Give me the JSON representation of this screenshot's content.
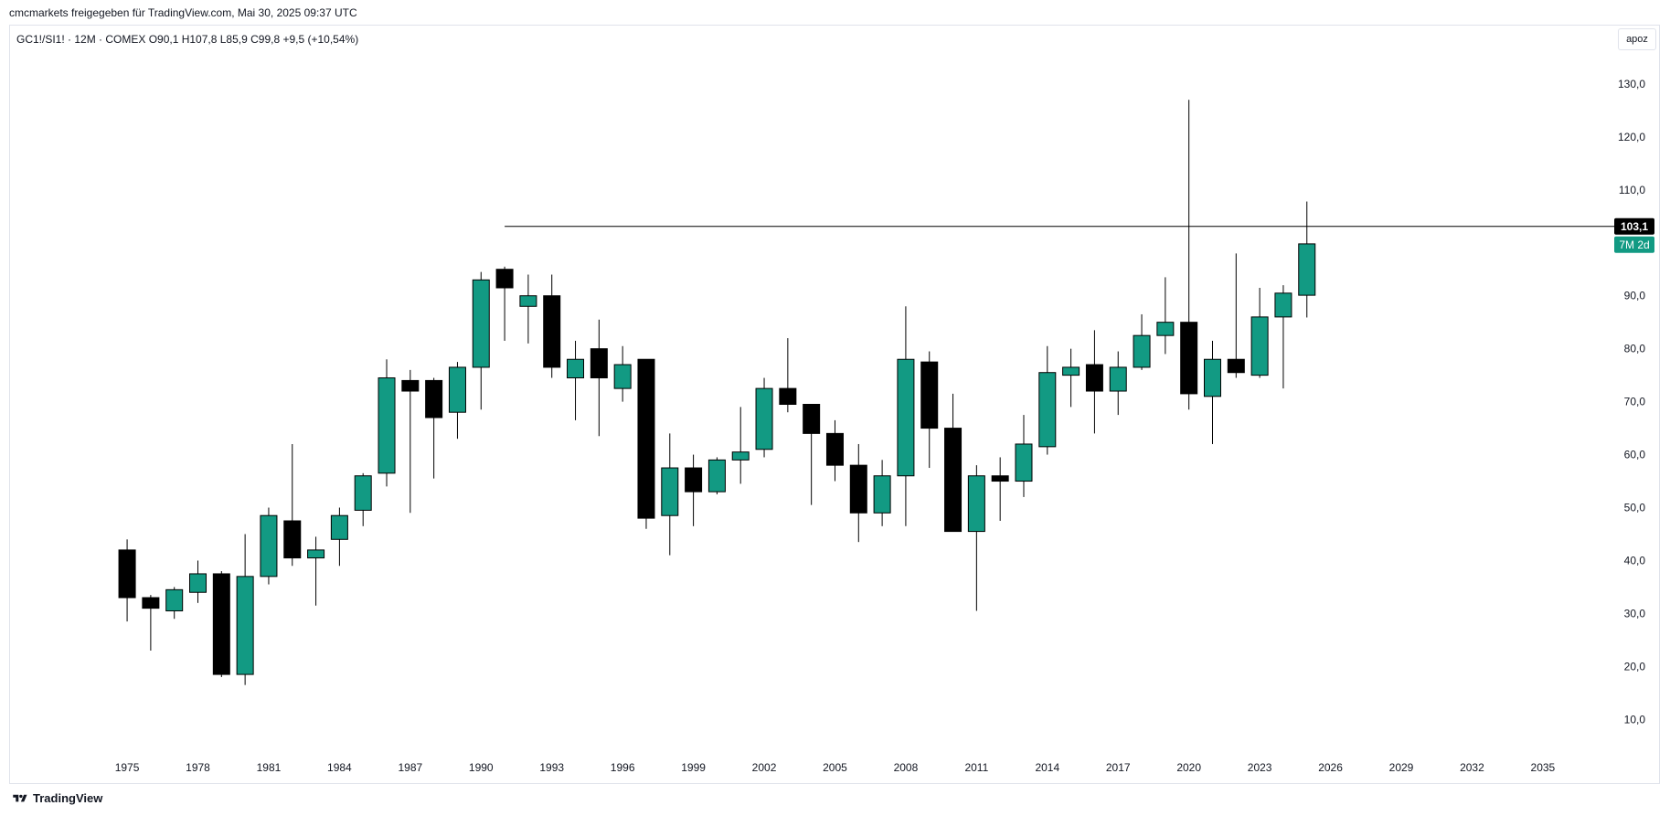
{
  "header": {
    "text": "cmcmarkets freigegeben für TradingView.com, Mai 30, 2025 09:37 UTC"
  },
  "legend": {
    "text": "GC1!/SI1! · 12M · COMEX  O90,1  H107,8  L85,9  C99,8  +9,5 (+10,54%)"
  },
  "apoz_label": "apoz",
  "footer": {
    "logo_text": "TradingView"
  },
  "colors": {
    "up": "#129a83",
    "down": "#000000",
    "line": "#000000"
  },
  "chart_data": {
    "type": "candlestick",
    "title": "GC1!/SI1!",
    "ylim": [
      3.5,
      135.5
    ],
    "y_ticks": [
      10,
      20,
      30,
      40,
      50,
      60,
      70,
      80,
      90,
      100,
      110,
      120,
      130
    ],
    "y_tick_labels": [
      "10,0",
      "20,0",
      "30,0",
      "40,0",
      "50,0",
      "60,0",
      "70,0",
      "80,0",
      "90,0",
      "100,0",
      "110,0",
      "120,0",
      "130,0"
    ],
    "hide_tick_values": [
      100
    ],
    "x_ticks": [
      1975,
      1978,
      1981,
      1984,
      1987,
      1990,
      1993,
      1996,
      1999,
      2002,
      2005,
      2008,
      2011,
      2014,
      2017,
      2020,
      2023,
      2026,
      2029,
      2032,
      2035
    ],
    "xlim": [
      1970.0,
      2037.6
    ],
    "horizontal_line": {
      "value": 103.1,
      "from_year": 1991,
      "label": "103,1"
    },
    "countdown_label": "7M 2d",
    "candles": [
      {
        "year": 1975,
        "o": 42,
        "h": 44,
        "l": 28.5,
        "c": 33
      },
      {
        "year": 1976,
        "o": 33,
        "h": 33.5,
        "l": 23,
        "c": 31
      },
      {
        "year": 1977,
        "o": 30.5,
        "h": 35,
        "l": 29,
        "c": 34.5
      },
      {
        "year": 1978,
        "o": 34,
        "h": 40,
        "l": 32,
        "c": 37.5
      },
      {
        "year": 1979,
        "o": 37.5,
        "h": 38,
        "l": 18,
        "c": 18.5
      },
      {
        "year": 1980,
        "o": 18.5,
        "h": 45,
        "l": 16.5,
        "c": 37
      },
      {
        "year": 1981,
        "o": 37,
        "h": 50,
        "l": 35.5,
        "c": 48.5
      },
      {
        "year": 1982,
        "o": 47.5,
        "h": 62,
        "l": 39,
        "c": 40.5
      },
      {
        "year": 1983,
        "o": 40.5,
        "h": 44.5,
        "l": 31.5,
        "c": 42
      },
      {
        "year": 1984,
        "o": 44,
        "h": 50,
        "l": 39,
        "c": 48.5
      },
      {
        "year": 1985,
        "o": 49.5,
        "h": 56.5,
        "l": 46.5,
        "c": 56
      },
      {
        "year": 1986,
        "o": 56.5,
        "h": 78,
        "l": 54,
        "c": 74.5
      },
      {
        "year": 1987,
        "o": 74,
        "h": 76,
        "l": 49,
        "c": 72
      },
      {
        "year": 1988,
        "o": 74,
        "h": 74.5,
        "l": 55.5,
        "c": 67
      },
      {
        "year": 1989,
        "o": 68,
        "h": 77.5,
        "l": 63,
        "c": 76.5
      },
      {
        "year": 1990,
        "o": 76.5,
        "h": 94.5,
        "l": 68.5,
        "c": 93
      },
      {
        "year": 1991,
        "o": 95,
        "h": 95.5,
        "l": 81.5,
        "c": 91.5
      },
      {
        "year": 1992,
        "o": 88,
        "h": 94,
        "l": 81,
        "c": 90
      },
      {
        "year": 1993,
        "o": 90,
        "h": 94,
        "l": 74.5,
        "c": 76.5
      },
      {
        "year": 1994,
        "o": 74.5,
        "h": 81.5,
        "l": 66.5,
        "c": 78
      },
      {
        "year": 1995,
        "o": 80,
        "h": 85.5,
        "l": 63.5,
        "c": 74.5
      },
      {
        "year": 1996,
        "o": 72.5,
        "h": 80.5,
        "l": 70,
        "c": 77
      },
      {
        "year": 1997,
        "o": 78,
        "h": 78,
        "l": 46,
        "c": 48
      },
      {
        "year": 1998,
        "o": 48.5,
        "h": 64,
        "l": 41,
        "c": 57.5
      },
      {
        "year": 1999,
        "o": 57.5,
        "h": 60,
        "l": 46.5,
        "c": 53
      },
      {
        "year": 2000,
        "o": 53,
        "h": 59.5,
        "l": 52.5,
        "c": 59
      },
      {
        "year": 2001,
        "o": 59,
        "h": 69,
        "l": 54.5,
        "c": 60.5
      },
      {
        "year": 2002,
        "o": 61,
        "h": 74.5,
        "l": 59.5,
        "c": 72.5
      },
      {
        "year": 2003,
        "o": 72.5,
        "h": 82,
        "l": 68,
        "c": 69.5
      },
      {
        "year": 2004,
        "o": 69.5,
        "h": 69.5,
        "l": 50.5,
        "c": 64
      },
      {
        "year": 2005,
        "o": 64,
        "h": 66.5,
        "l": 55,
        "c": 58
      },
      {
        "year": 2006,
        "o": 58,
        "h": 62,
        "l": 43.5,
        "c": 49
      },
      {
        "year": 2007,
        "o": 49,
        "h": 59,
        "l": 46.5,
        "c": 56
      },
      {
        "year": 2008,
        "o": 56,
        "h": 88,
        "l": 46.5,
        "c": 78
      },
      {
        "year": 2009,
        "o": 77.5,
        "h": 79.5,
        "l": 57.5,
        "c": 65
      },
      {
        "year": 2010,
        "o": 65,
        "h": 71.5,
        "l": 45.5,
        "c": 45.5
      },
      {
        "year": 2011,
        "o": 45.5,
        "h": 58,
        "l": 30.5,
        "c": 56
      },
      {
        "year": 2012,
        "o": 56,
        "h": 59.5,
        "l": 47.5,
        "c": 55
      },
      {
        "year": 2013,
        "o": 55,
        "h": 67.5,
        "l": 52,
        "c": 62
      },
      {
        "year": 2014,
        "o": 61.5,
        "h": 80.5,
        "l": 60,
        "c": 75.5
      },
      {
        "year": 2015,
        "o": 75,
        "h": 80,
        "l": 69,
        "c": 76.5
      },
      {
        "year": 2016,
        "o": 77,
        "h": 83.5,
        "l": 64,
        "c": 72
      },
      {
        "year": 2017,
        "o": 72,
        "h": 79.5,
        "l": 67.5,
        "c": 76.5
      },
      {
        "year": 2018,
        "o": 76.5,
        "h": 86.5,
        "l": 76,
        "c": 82.5
      },
      {
        "year": 2019,
        "o": 82.5,
        "h": 93.5,
        "l": 79,
        "c": 85
      },
      {
        "year": 2020,
        "o": 85,
        "h": 127,
        "l": 68.5,
        "c": 71.5
      },
      {
        "year": 2021,
        "o": 71,
        "h": 81.5,
        "l": 62,
        "c": 78
      },
      {
        "year": 2022,
        "o": 78,
        "h": 98,
        "l": 74.5,
        "c": 75.5
      },
      {
        "year": 2023,
        "o": 75,
        "h": 91.5,
        "l": 74.5,
        "c": 86
      },
      {
        "year": 2024,
        "o": 86,
        "h": 92,
        "l": 72.5,
        "c": 90.5
      },
      {
        "year": 2025,
        "o": 90.1,
        "h": 107.8,
        "l": 85.9,
        "c": 99.8
      }
    ]
  }
}
